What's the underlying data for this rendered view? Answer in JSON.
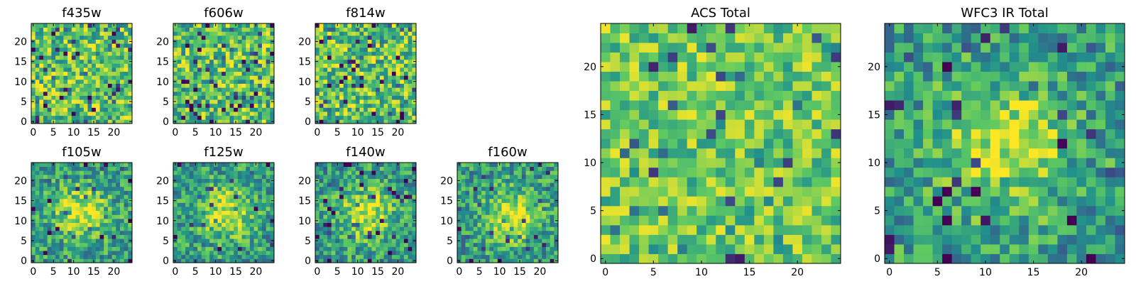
{
  "figure": {
    "colormap": [
      "#440154",
      "#3b528b",
      "#21918c",
      "#5ec962",
      "#fde725"
    ]
  },
  "chart_data": [
    {
      "type": "heatmap",
      "title": "f435w",
      "grid": [
        25,
        25
      ],
      "xlim": [
        0,
        24
      ],
      "ylim": [
        0,
        24
      ],
      "xticks": [
        "0",
        "5",
        "10",
        "15",
        "20"
      ],
      "yticks": [
        "0",
        "5",
        "10",
        "15",
        "20"
      ],
      "seed": 11,
      "texture": "noise"
    },
    {
      "type": "heatmap",
      "title": "f606w",
      "grid": [
        25,
        25
      ],
      "xlim": [
        0,
        24
      ],
      "ylim": [
        0,
        24
      ],
      "xticks": [
        "0",
        "5",
        "10",
        "15",
        "20"
      ],
      "yticks": [
        "0",
        "5",
        "10",
        "15",
        "20"
      ],
      "seed": 23,
      "texture": "noise"
    },
    {
      "type": "heatmap",
      "title": "f814w",
      "grid": [
        25,
        25
      ],
      "xlim": [
        0,
        24
      ],
      "ylim": [
        0,
        24
      ],
      "xticks": [
        "0",
        "5",
        "10",
        "15",
        "20"
      ],
      "yticks": [
        "0",
        "5",
        "10",
        "15",
        "20"
      ],
      "seed": 37,
      "texture": "noise"
    },
    {
      "type": "heatmap",
      "title": "f105w",
      "grid": [
        25,
        25
      ],
      "xlim": [
        0,
        24
      ],
      "ylim": [
        0,
        24
      ],
      "xticks": [
        "0",
        "5",
        "10",
        "15",
        "20"
      ],
      "yticks": [
        "0",
        "5",
        "10",
        "15",
        "20"
      ],
      "seed": 41,
      "texture": "source",
      "source_center": [
        12,
        12
      ]
    },
    {
      "type": "heatmap",
      "title": "f125w",
      "grid": [
        25,
        25
      ],
      "xlim": [
        0,
        24
      ],
      "ylim": [
        0,
        24
      ],
      "xticks": [
        "0",
        "5",
        "10",
        "15",
        "20"
      ],
      "yticks": [
        "0",
        "5",
        "10",
        "15",
        "20"
      ],
      "seed": 53,
      "texture": "source",
      "source_center": [
        13,
        12
      ]
    },
    {
      "type": "heatmap",
      "title": "f140w",
      "grid": [
        25,
        25
      ],
      "xlim": [
        0,
        24
      ],
      "ylim": [
        0,
        24
      ],
      "xticks": [
        "0",
        "5",
        "10",
        "15",
        "20"
      ],
      "yticks": [
        "0",
        "5",
        "10",
        "15",
        "20"
      ],
      "seed": 67,
      "texture": "source",
      "source_center": [
        12,
        12
      ]
    },
    {
      "type": "heatmap",
      "title": "f160w",
      "grid": [
        25,
        25
      ],
      "xlim": [
        0,
        24
      ],
      "ylim": [
        0,
        24
      ],
      "xticks": [
        "0",
        "5",
        "10",
        "15",
        "20"
      ],
      "yticks": [
        "0",
        "5",
        "10",
        "15",
        "20"
      ],
      "seed": 79,
      "texture": "source",
      "source_center": [
        13,
        11
      ]
    },
    {
      "type": "heatmap",
      "title": "ACS Total",
      "grid": [
        25,
        25
      ],
      "xlim": [
        0,
        24
      ],
      "ylim": [
        0,
        24
      ],
      "xticks": [
        "0",
        "5",
        "10",
        "15",
        "20"
      ],
      "yticks": [
        "0",
        "5",
        "10",
        "15",
        "20"
      ],
      "seed": 97,
      "texture": "total"
    },
    {
      "type": "heatmap",
      "title": "WFC3 IR Total",
      "grid": [
        25,
        25
      ],
      "xlim": [
        0,
        24
      ],
      "ylim": [
        0,
        24
      ],
      "xticks": [
        "0",
        "5",
        "10",
        "15",
        "20"
      ],
      "yticks": [
        "0",
        "5",
        "10",
        "15",
        "20"
      ],
      "seed": 101,
      "texture": "source",
      "source_center": [
        12,
        12
      ]
    }
  ]
}
